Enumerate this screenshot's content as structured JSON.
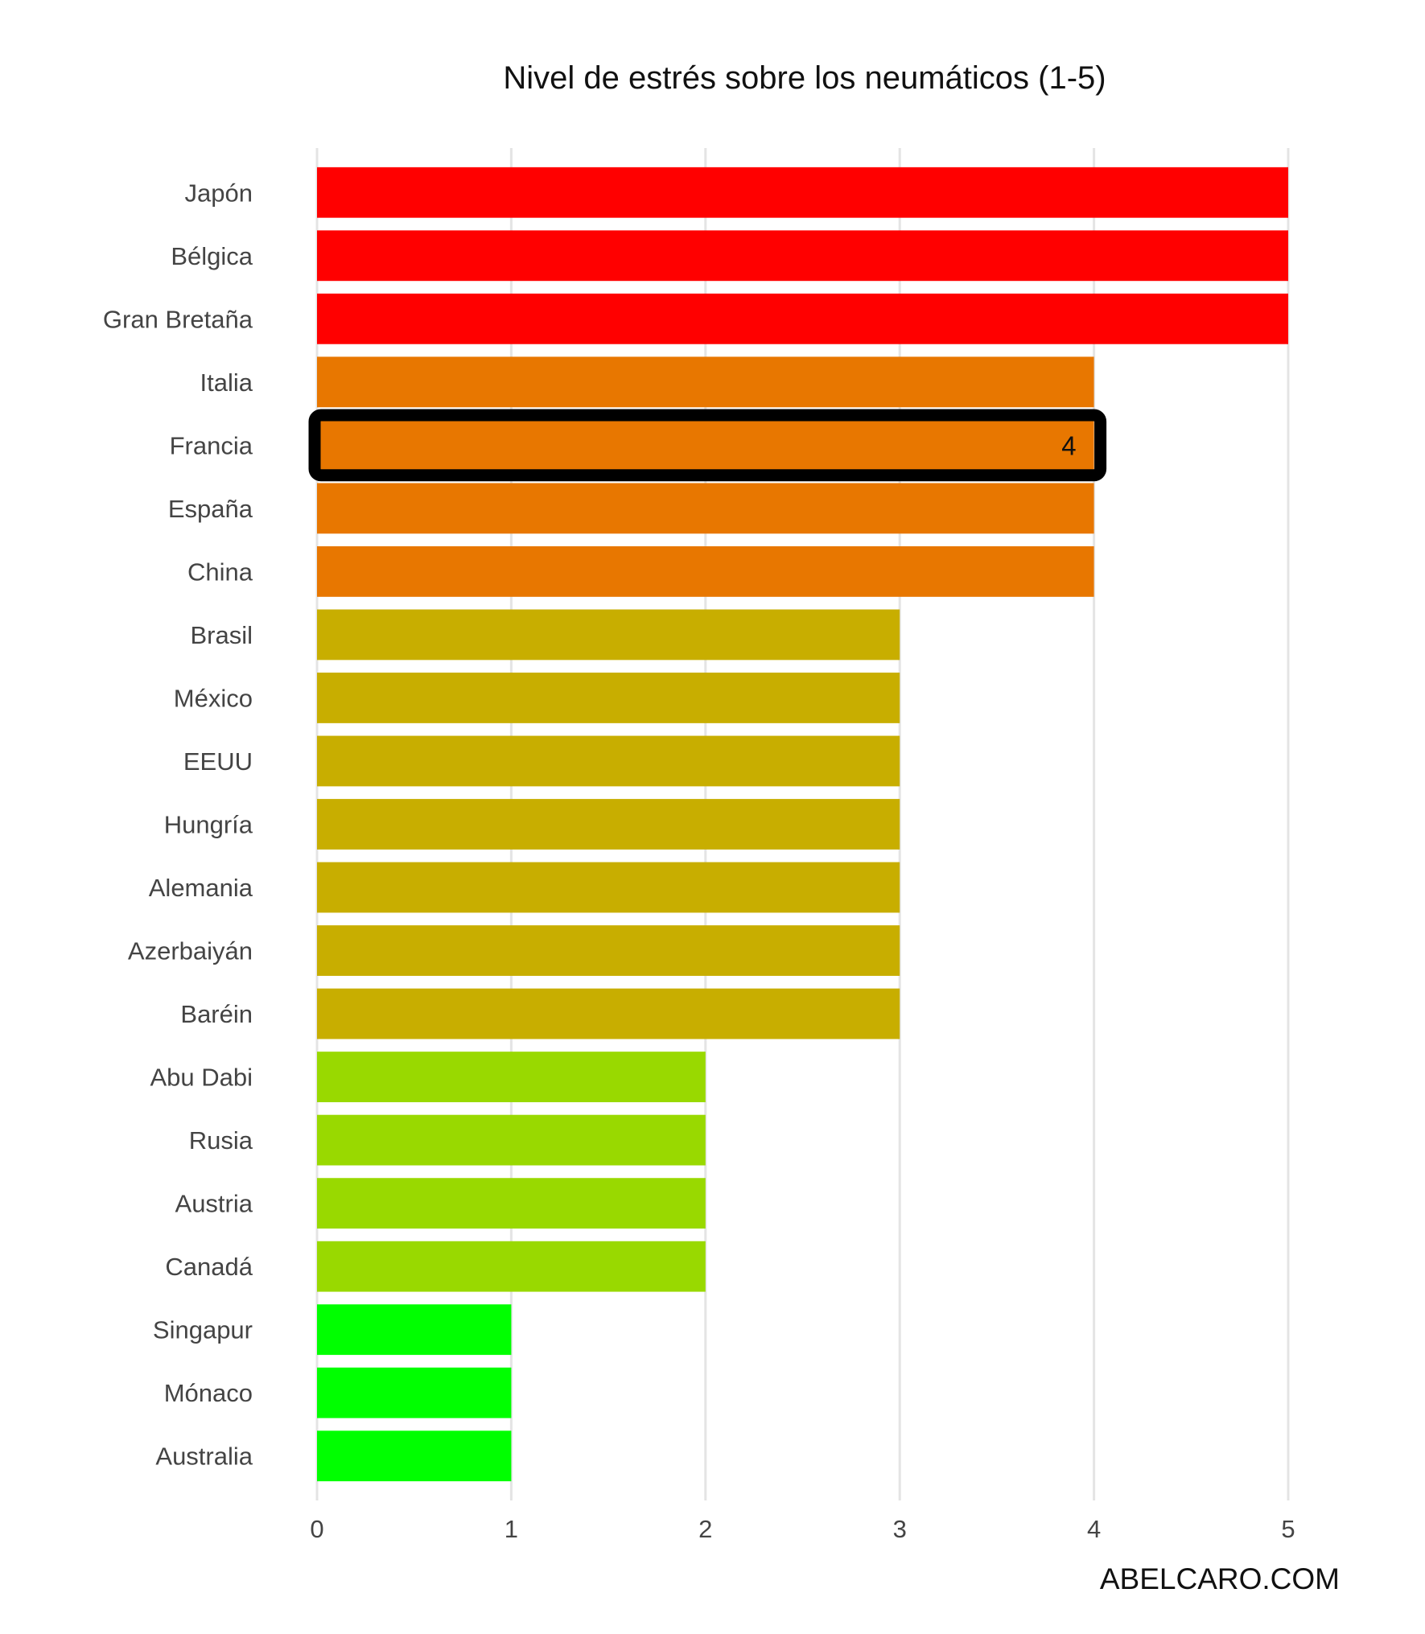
{
  "chart_data": {
    "type": "bar",
    "orientation": "horizontal",
    "title": "Nivel de estrés sobre los neumáticos (1-5)",
    "xlabel": "",
    "ylabel": "",
    "caption": "ABELCARO.COM",
    "xlim": [
      0,
      5
    ],
    "xticks": [
      "0",
      "1",
      "2",
      "3",
      "4",
      "5"
    ],
    "grid": "vertical",
    "legend": "none",
    "categories": [
      "Japón",
      "Bélgica",
      "Gran Bretaña",
      "Italia",
      "Francia",
      "España",
      "China",
      "Brasil",
      "México",
      "EEUU",
      "Hungría",
      "Alemania",
      "Azerbaiyán",
      "Baréin",
      "Abu Dabi",
      "Rusia",
      "Austria",
      "Canadá",
      "Singapur",
      "Mónaco",
      "Australia"
    ],
    "values": [
      5,
      5,
      5,
      4,
      4,
      4,
      4,
      3,
      3,
      3,
      3,
      3,
      3,
      3,
      2,
      2,
      2,
      2,
      1,
      1,
      1
    ],
    "colors_by_value": {
      "5": "#ff0000",
      "4": "#e87700",
      "3": "#c8ae00",
      "2": "#99d900",
      "1": "#00ff00"
    },
    "highlight": {
      "category": "Francia",
      "label": "4",
      "outline_color": "#000000"
    }
  }
}
